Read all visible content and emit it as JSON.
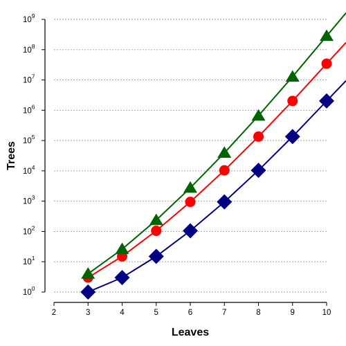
{
  "chart_data": {
    "type": "line",
    "title": "",
    "xlabel": "Leaves",
    "ylabel": "Trees",
    "y_scale": "log10",
    "xlim": [
      2,
      10
    ],
    "ylim": [
      1,
      1000000000
    ],
    "x_ticks": [
      2,
      3,
      4,
      5,
      6,
      7,
      8,
      9,
      10
    ],
    "y_ticks": [
      {
        "base": "10",
        "exp": "0"
      },
      {
        "base": "10",
        "exp": "1"
      },
      {
        "base": "10",
        "exp": "2"
      },
      {
        "base": "10",
        "exp": "3"
      },
      {
        "base": "10",
        "exp": "4"
      },
      {
        "base": "10",
        "exp": "5"
      },
      {
        "base": "10",
        "exp": "6"
      },
      {
        "base": "10",
        "exp": "7"
      },
      {
        "base": "10",
        "exp": "8"
      },
      {
        "base": "10",
        "exp": "9"
      }
    ],
    "grid": "horizontal dashed",
    "legend": "none",
    "series": [
      {
        "marker": "diamond",
        "color": "#000080",
        "x": [
          3,
          4,
          5,
          6,
          7,
          8,
          9,
          10
        ],
        "y": [
          1,
          3,
          15,
          105,
          945,
          10395,
          135135,
          2027025
        ]
      },
      {
        "marker": "circle",
        "color": "#ff0000",
        "x": [
          3,
          4,
          5,
          6,
          7,
          8,
          9,
          10
        ],
        "y": [
          3,
          15,
          105,
          945,
          10395,
          135135,
          2027025,
          34459425
        ]
      },
      {
        "marker": "triangle",
        "color": "#006400",
        "x": [
          3,
          4,
          5,
          6,
          7,
          8,
          9,
          10
        ],
        "y": [
          4,
          26,
          236,
          2752,
          39208,
          660032,
          12818912,
          282137824
        ]
      }
    ]
  }
}
